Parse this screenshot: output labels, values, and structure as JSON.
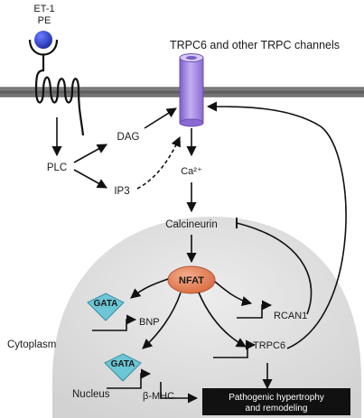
{
  "ligand": {
    "line1": "ET-1",
    "line2": "PE"
  },
  "channel_title": "TRPC6 and other TRPC channels",
  "nodes": {
    "plc": "PLC",
    "dag": "DAG",
    "ip3": "IP3",
    "calcium": "Ca²⁺",
    "calcineurin": "Calcineurin",
    "nfat": "NFAT",
    "gata": "GATA",
    "bnp": "BNP",
    "beta_mhc": "β-MHC",
    "rcan1": "RCAN1",
    "trpc6": "TRPC6"
  },
  "regions": {
    "cytoplasm": "Cytoplasm",
    "nucleus": "Nucleus"
  },
  "outcome": {
    "line1": "Pathogenic hypertrophy",
    "line2": "and remodeling"
  },
  "colors": {
    "receptor_ligand": "#2b3fc8",
    "channel": "#a98ae6",
    "nfat": "#e8825a",
    "gata": "#6cc6d6",
    "nucleus": "#dedede",
    "outcome_box": "#111111"
  }
}
